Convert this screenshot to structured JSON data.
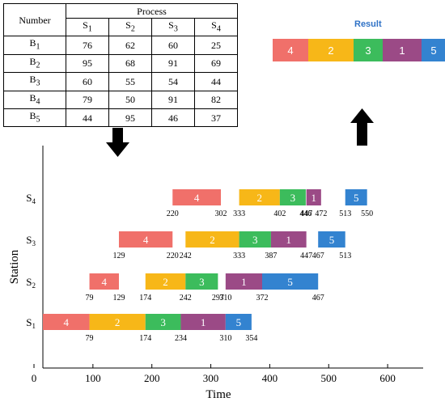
{
  "table": {
    "header_number": "Number",
    "header_process": "Process",
    "stations": [
      {
        "s": "S",
        "sub": "1"
      },
      {
        "s": "S",
        "sub": "2"
      },
      {
        "s": "S",
        "sub": "3"
      },
      {
        "s": "S",
        "sub": "4"
      }
    ],
    "rows": [
      {
        "b": "B",
        "sub": "1",
        "values": [
          "76",
          "62",
          "60",
          "25"
        ]
      },
      {
        "b": "B",
        "sub": "2",
        "values": [
          "95",
          "68",
          "91",
          "69"
        ]
      },
      {
        "b": "B",
        "sub": "3",
        "values": [
          "60",
          "55",
          "54",
          "44"
        ]
      },
      {
        "b": "B",
        "sub": "4",
        "values": [
          "79",
          "50",
          "91",
          "82"
        ]
      },
      {
        "b": "B",
        "sub": "5",
        "values": [
          "44",
          "95",
          "46",
          "37"
        ]
      }
    ]
  },
  "result": {
    "title": "Result",
    "sequence": [
      {
        "label": "4",
        "job": 4
      },
      {
        "label": "2",
        "job": 2
      },
      {
        "label": "3",
        "job": 3
      },
      {
        "label": "1",
        "job": 1
      },
      {
        "label": "5",
        "job": 5
      }
    ]
  },
  "colors": {
    "job1": "#9b4a86",
    "job2": "#f7b718",
    "job3": "#3cbc5c",
    "job4": "#f0706a",
    "job5": "#3383d0",
    "arrow": "#000000",
    "axis": "#000000"
  },
  "chart_data": {
    "type": "gantt",
    "xlabel": "Time",
    "ylabel": "Station",
    "xlim": [
      0,
      650
    ],
    "xticks": [
      "0",
      "100",
      "200",
      "300",
      "400",
      "500",
      "600"
    ],
    "stations": [
      {
        "name": "S",
        "sub": "1"
      },
      {
        "name": "S",
        "sub": "2"
      },
      {
        "name": "S",
        "sub": "3"
      },
      {
        "name": "S",
        "sub": "4"
      }
    ],
    "tasks": [
      {
        "station": 0,
        "job": 4,
        "label": "4",
        "start": 0,
        "end": 79
      },
      {
        "station": 0,
        "job": 2,
        "label": "2",
        "start": 79,
        "end": 174
      },
      {
        "station": 0,
        "job": 3,
        "label": "3",
        "start": 174,
        "end": 234
      },
      {
        "station": 0,
        "job": 1,
        "label": "1",
        "start": 234,
        "end": 310
      },
      {
        "station": 0,
        "job": 5,
        "label": "5",
        "start": 310,
        "end": 354
      },
      {
        "station": 1,
        "job": 4,
        "label": "4",
        "start": 79,
        "end": 129
      },
      {
        "station": 1,
        "job": 2,
        "label": "2",
        "start": 174,
        "end": 242
      },
      {
        "station": 1,
        "job": 3,
        "label": "3",
        "start": 242,
        "end": 297
      },
      {
        "station": 1,
        "job": 1,
        "label": "1",
        "start": 310,
        "end": 372
      },
      {
        "station": 1,
        "job": 5,
        "label": "5",
        "start": 372,
        "end": 467
      },
      {
        "station": 2,
        "job": 4,
        "label": "4",
        "start": 129,
        "end": 220
      },
      {
        "station": 2,
        "job": 2,
        "label": "2",
        "start": 242,
        "end": 333
      },
      {
        "station": 2,
        "job": 3,
        "label": "3",
        "start": 333,
        "end": 387
      },
      {
        "station": 2,
        "job": 1,
        "label": "1",
        "start": 387,
        "end": 447
      },
      {
        "station": 2,
        "job": 5,
        "label": "5",
        "start": 467,
        "end": 513
      },
      {
        "station": 3,
        "job": 4,
        "label": "4",
        "start": 220,
        "end": 302
      },
      {
        "station": 3,
        "job": 2,
        "label": "2",
        "start": 333,
        "end": 402
      },
      {
        "station": 3,
        "job": 3,
        "label": "3",
        "start": 402,
        "end": 446
      },
      {
        "station": 3,
        "job": 1,
        "label": "1",
        "start": 447,
        "end": 472
      },
      {
        "station": 3,
        "job": 5,
        "label": "5",
        "start": 513,
        "end": 550
      }
    ],
    "time_labels": [
      {
        "station": 0,
        "values": [
          "79",
          "174",
          "234",
          "310",
          "354"
        ]
      },
      {
        "station": 1,
        "values": [
          "79",
          "129",
          "174",
          "242",
          "297",
          "310",
          "372",
          "467"
        ]
      },
      {
        "station": 2,
        "values": [
          "129",
          "220",
          "242",
          "333",
          "387",
          "447",
          "467",
          "513"
        ]
      },
      {
        "station": 3,
        "values": [
          "220",
          "302",
          "333",
          "402",
          "446",
          "447",
          "472",
          "513",
          "550"
        ]
      }
    ]
  }
}
